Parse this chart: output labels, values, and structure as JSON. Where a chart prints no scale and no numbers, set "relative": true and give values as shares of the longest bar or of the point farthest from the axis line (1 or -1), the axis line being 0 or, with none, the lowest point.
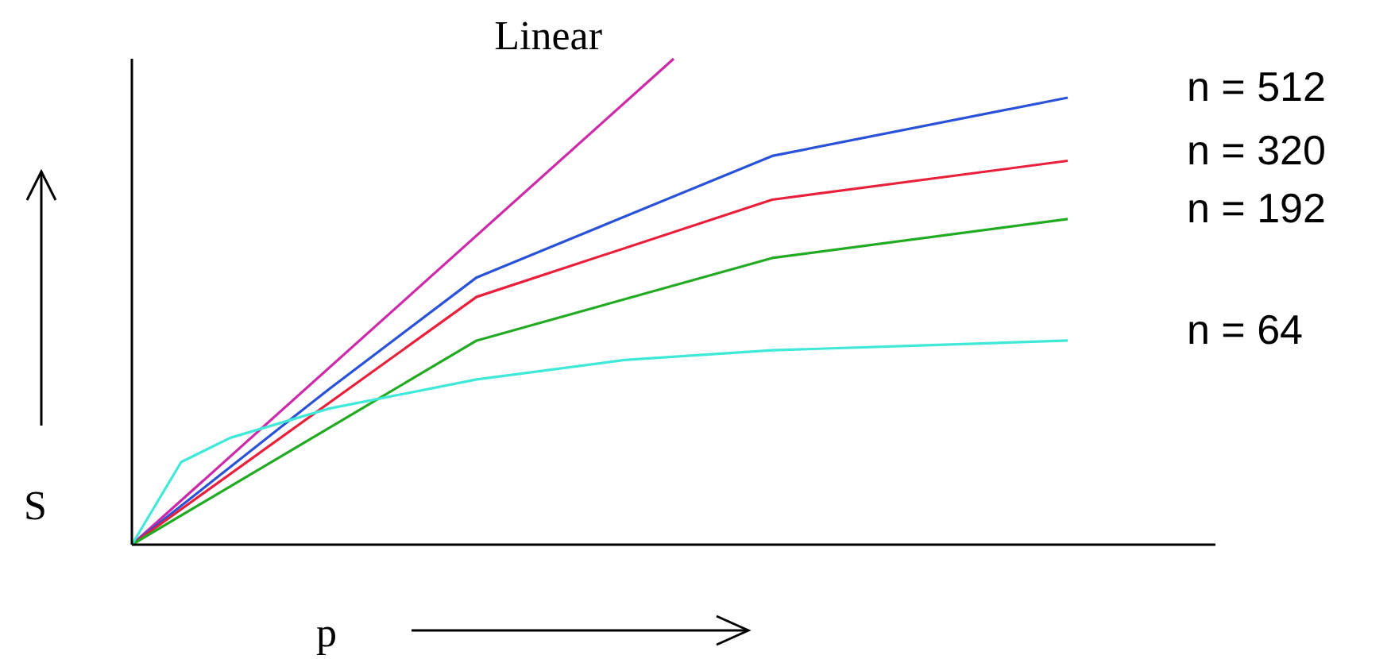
{
  "chart_data": {
    "type": "line",
    "relative": true,
    "xlabel": "p",
    "ylabel": "S",
    "categories": [
      null,
      null,
      null,
      null,
      null,
      null,
      null,
      null,
      null,
      null,
      null,
      null,
      null,
      null,
      null,
      null,
      null,
      null,
      null,
      null,
      null,
      null,
      null
    ],
    "series": [
      {
        "name": "Linear",
        "color": "#cc2aa8",
        "values": [
          0,
          null,
          null,
          null,
          null,
          null,
          null,
          null,
          null,
          null,
          null,
          1,
          null,
          null,
          null,
          null,
          null,
          null,
          null,
          null,
          null,
          null,
          null
        ]
      },
      {
        "name": "n = 512",
        "color": "#2a52d8",
        "values": [
          0,
          null,
          null,
          null,
          0.32,
          null,
          null,
          0.55,
          null,
          null,
          null,
          null,
          null,
          0.8,
          null,
          null,
          null,
          null,
          null,
          0.92,
          null,
          null,
          null
        ]
      },
      {
        "name": "n = 320",
        "color": "#e8203c",
        "values": [
          0,
          null,
          null,
          null,
          null,
          null,
          null,
          0.51,
          null,
          null,
          null,
          null,
          null,
          0.71,
          null,
          null,
          null,
          null,
          null,
          0.79,
          null,
          null,
          null
        ]
      },
      {
        "name": "n = 192",
        "color": "#22aa22",
        "values": [
          0,
          null,
          null,
          null,
          null,
          null,
          null,
          0.42,
          null,
          null,
          null,
          null,
          null,
          0.59,
          null,
          null,
          null,
          null,
          null,
          0.67,
          null,
          null,
          null
        ]
      },
      {
        "name": "n = 64",
        "color": "#40e8d8",
        "values": [
          0,
          0.17,
          0.22,
          null,
          0.28,
          null,
          null,
          0.34,
          null,
          null,
          0.38,
          null,
          null,
          0.4,
          null,
          null,
          0.41,
          null,
          null,
          0.42,
          null,
          null,
          null
        ]
      }
    ],
    "legend": false,
    "grid": false,
    "marker": "none",
    "line_style": "solid"
  }
}
